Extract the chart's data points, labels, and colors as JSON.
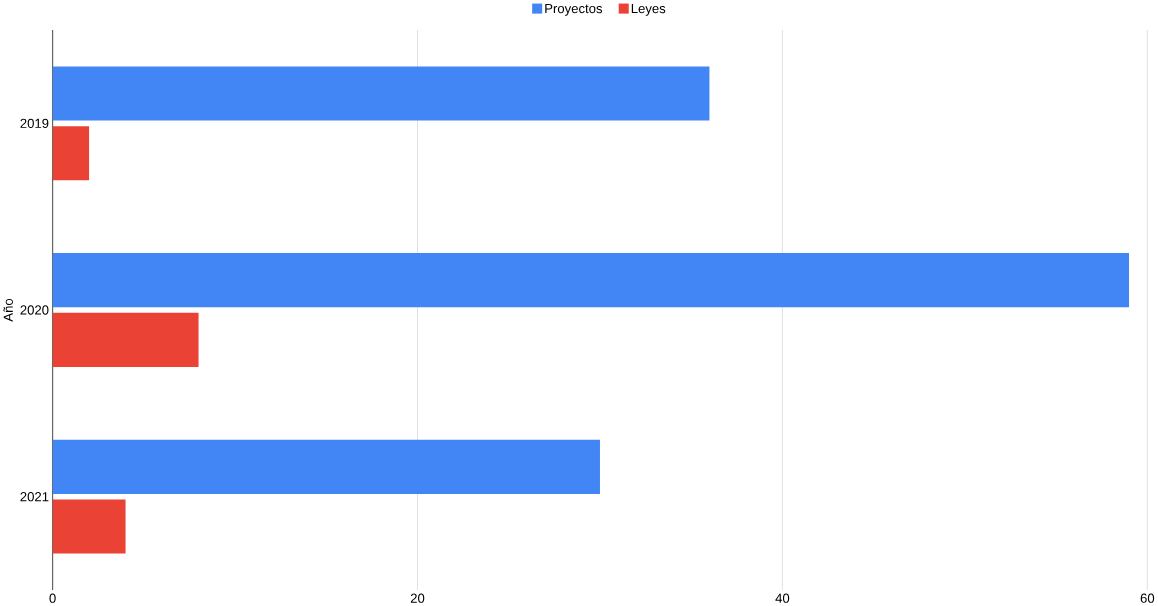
{
  "chart_data": {
    "type": "bar",
    "orientation": "horizontal",
    "ylabel": "Año",
    "categories": [
      "2019",
      "2020",
      "2021"
    ],
    "series": [
      {
        "name": "Proyectos",
        "color": "#4285f4",
        "values": [
          36,
          59,
          30
        ]
      },
      {
        "name": "Leyes",
        "color": "#ea4335",
        "values": [
          2,
          8,
          4
        ]
      }
    ],
    "xlim": [
      0,
      60
    ],
    "xticks": [
      0,
      20,
      40,
      60
    ],
    "grid": "x",
    "legend": "top"
  }
}
